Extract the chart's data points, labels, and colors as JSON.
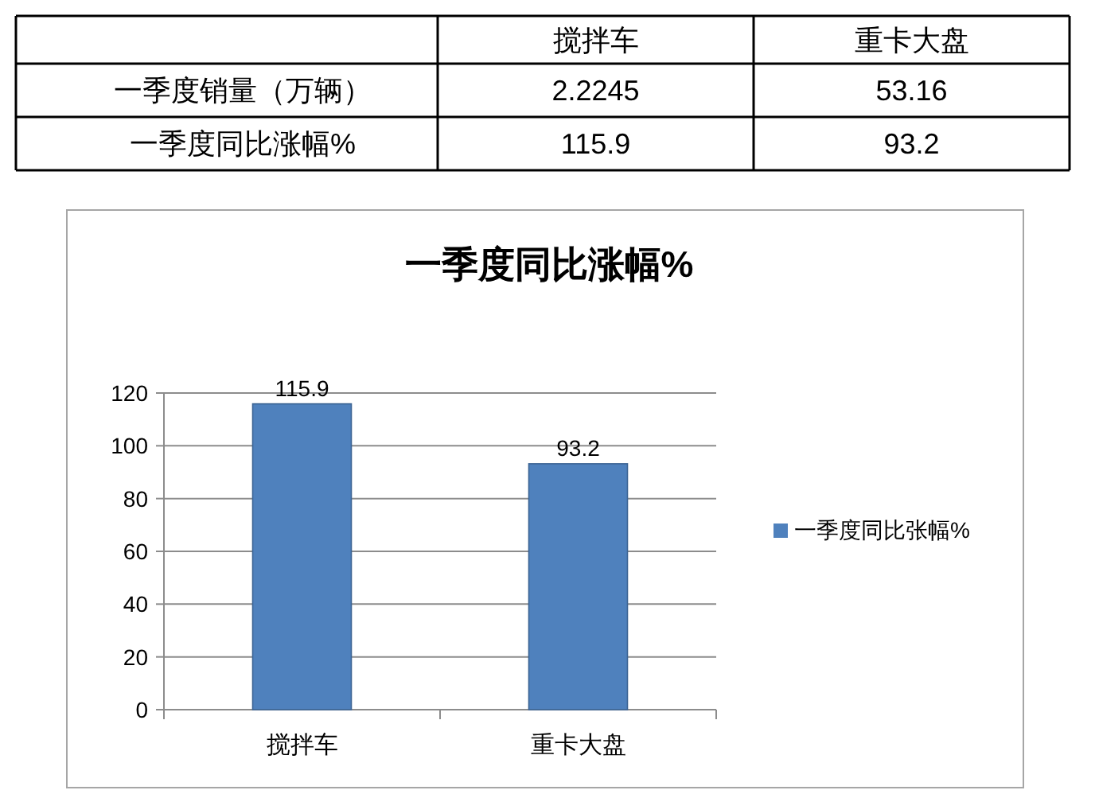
{
  "chart_data": [
    {
      "type": "heatmap",
      "categories": [
        "搅拌车",
        "重卡大盘"
      ],
      "y_categories": [
        "一季度销量（万辆）",
        "一季度同比涨幅%"
      ],
      "cells": [
        [
          2.2245,
          53.16
        ],
        [
          115.9,
          93.2
        ]
      ],
      "data_labels": true
    },
    {
      "type": "bar",
      "title": "一季度同比涨幅%",
      "categories": [
        "搅拌车",
        "重卡大盘"
      ],
      "series": [
        {
          "name": "一季度同比张幅%",
          "color": "#4f81bd",
          "values": [
            115.9,
            93.2
          ]
        }
      ],
      "ylim": [
        0,
        120
      ],
      "yticks": [
        0,
        20,
        40,
        60,
        80,
        100,
        120
      ],
      "grid": "y",
      "legend": "right",
      "data_labels": true
    }
  ]
}
